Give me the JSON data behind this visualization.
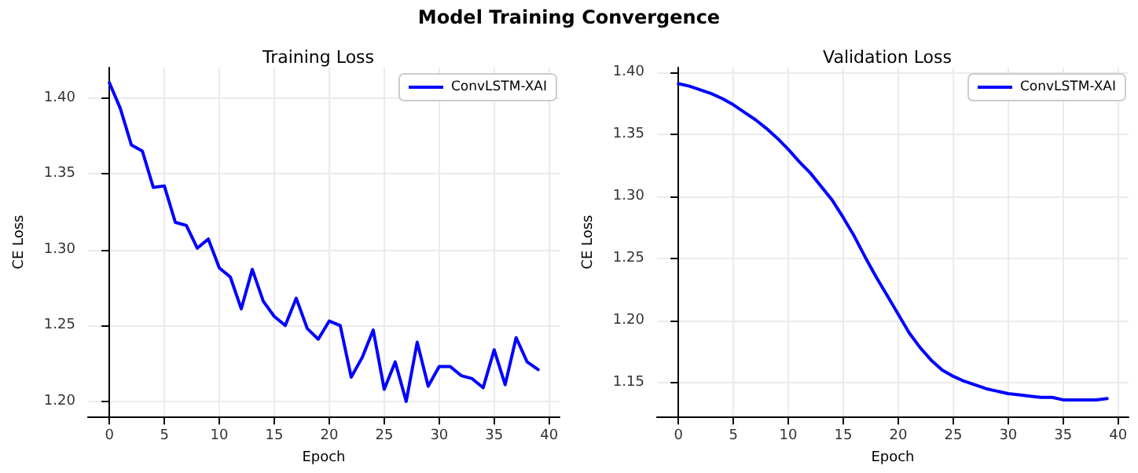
{
  "chart_data": [
    {
      "type": "line",
      "title": "Training Loss",
      "annotations": [
        "Model Training Convergence"
      ],
      "xlabel": "Epoch",
      "ylabel": "CE Loss",
      "x": [
        0,
        1,
        2,
        3,
        4,
        5,
        6,
        7,
        8,
        9,
        10,
        11,
        12,
        13,
        14,
        15,
        16,
        17,
        18,
        19,
        20,
        21,
        22,
        23,
        24,
        25,
        26,
        27,
        28,
        29,
        30,
        31,
        32,
        33,
        34,
        35,
        36,
        37,
        38,
        39
      ],
      "series": [
        {
          "name": "ConvLSTM-XAI",
          "color": "#0000ff",
          "values": [
            1.41,
            1.393,
            1.369,
            1.365,
            1.341,
            1.342,
            1.318,
            1.316,
            1.301,
            1.307,
            1.288,
            1.282,
            1.261,
            1.287,
            1.266,
            1.256,
            1.25,
            1.268,
            1.248,
            1.241,
            1.253,
            1.25,
            1.216,
            1.229,
            1.247,
            1.208,
            1.226,
            1.2,
            1.239,
            1.21,
            1.223,
            1.223,
            1.217,
            1.215,
            1.209,
            1.234,
            1.211,
            1.242,
            1.226,
            1.221
          ]
        }
      ],
      "xlim": [
        -1.95,
        40.95
      ],
      "ylim": [
        1.19,
        1.42
      ],
      "xticks": [
        0,
        5,
        10,
        15,
        20,
        25,
        30,
        35,
        40
      ],
      "yticks": [
        {
          "value": 1.2,
          "label": "1.20"
        },
        1.25,
        {
          "value": 1.3,
          "label": "1.30"
        },
        1.35,
        {
          "value": 1.4,
          "label": "1.40"
        }
      ],
      "grid": true,
      "legend": "top right",
      "marker": "none",
      "line_style": "solid"
    },
    {
      "type": "line",
      "title": "Validation Loss",
      "xlabel": "Epoch",
      "ylabel": "CE Loss",
      "x": [
        0,
        1,
        2,
        3,
        4,
        5,
        6,
        7,
        8,
        9,
        10,
        11,
        12,
        13,
        14,
        15,
        16,
        17,
        18,
        19,
        20,
        21,
        22,
        23,
        24,
        25,
        26,
        27,
        28,
        29,
        30,
        31,
        32,
        33,
        34,
        35,
        36,
        37,
        38,
        39
      ],
      "series": [
        {
          "name": "ConvLSTM-XAI",
          "color": "#0000ff",
          "values": [
            1.391,
            1.389,
            1.386,
            1.383,
            1.379,
            1.374,
            1.368,
            1.362,
            1.355,
            1.347,
            1.338,
            1.328,
            1.319,
            1.308,
            1.297,
            1.283,
            1.268,
            1.251,
            1.235,
            1.22,
            1.205,
            1.19,
            1.178,
            1.168,
            1.16,
            1.155,
            1.151,
            1.148,
            1.145,
            1.143,
            1.141,
            1.14,
            1.139,
            1.138,
            1.138,
            1.136,
            1.136,
            1.136,
            1.136,
            1.137
          ]
        }
      ],
      "xlim": [
        -1.95,
        40.95
      ],
      "ylim": [
        1.1225,
        1.404
      ],
      "xticks": [
        0,
        5,
        10,
        15,
        20,
        25,
        30,
        35,
        40
      ],
      "yticks": [
        1.15,
        {
          "value": 1.2,
          "label": "1.20"
        },
        1.25,
        {
          "value": 1.3,
          "label": "1.30"
        },
        1.35,
        {
          "value": 1.4,
          "label": "1.40"
        }
      ],
      "grid": true,
      "legend": "top right",
      "marker": "none",
      "line_style": "solid"
    }
  ]
}
